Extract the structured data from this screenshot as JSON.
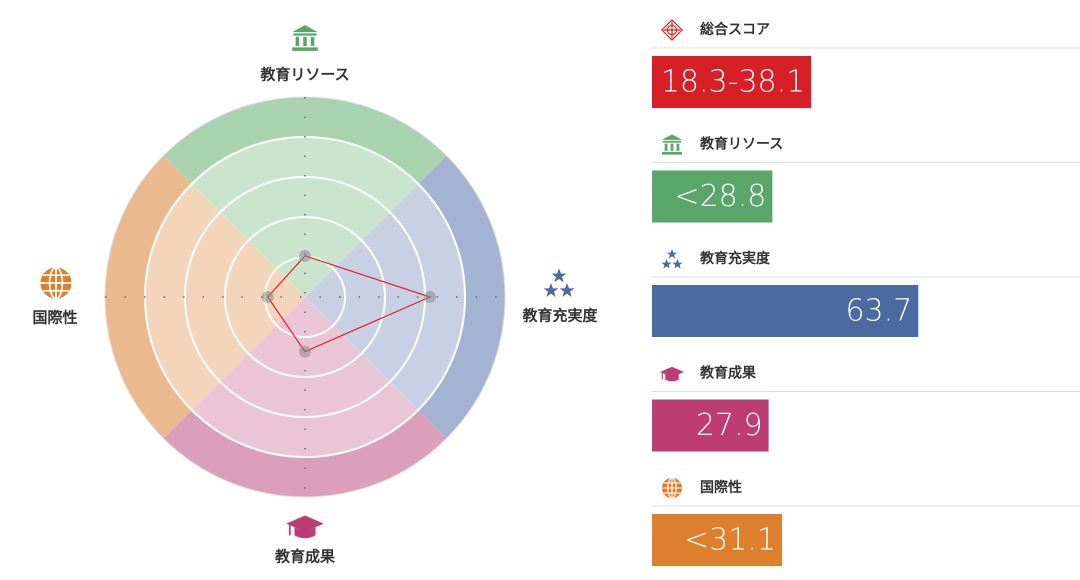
{
  "chart_data": [
    {
      "type": "radar",
      "categories": [
        "教育リソース",
        "教育充実度",
        "教育成果",
        "国際性"
      ],
      "values": [
        21,
        63.7,
        27.9,
        19
      ],
      "colors": [
        "#a9d3ae",
        "#a3b3d1",
        "#dc9fba",
        "#eab98e"
      ],
      "line_color": "#d9202f",
      "rlim": [
        0,
        100
      ]
    },
    {
      "type": "bar",
      "categories": [
        "総合スコア",
        "教育リソース",
        "教育充実度",
        "教育成果",
        "国際性"
      ],
      "values": [
        38.1,
        28.8,
        63.7,
        27.9,
        31.1
      ],
      "value_labels": [
        "18.3-38.1",
        "<28.8",
        "63.7",
        "27.9",
        "<31.1"
      ],
      "colors": [
        "#d61f26",
        "#5aa66a",
        "#4a6aa0",
        "#bd3c73",
        "#dd7f2c"
      ],
      "xlim": [
        0,
        100
      ]
    }
  ]
}
